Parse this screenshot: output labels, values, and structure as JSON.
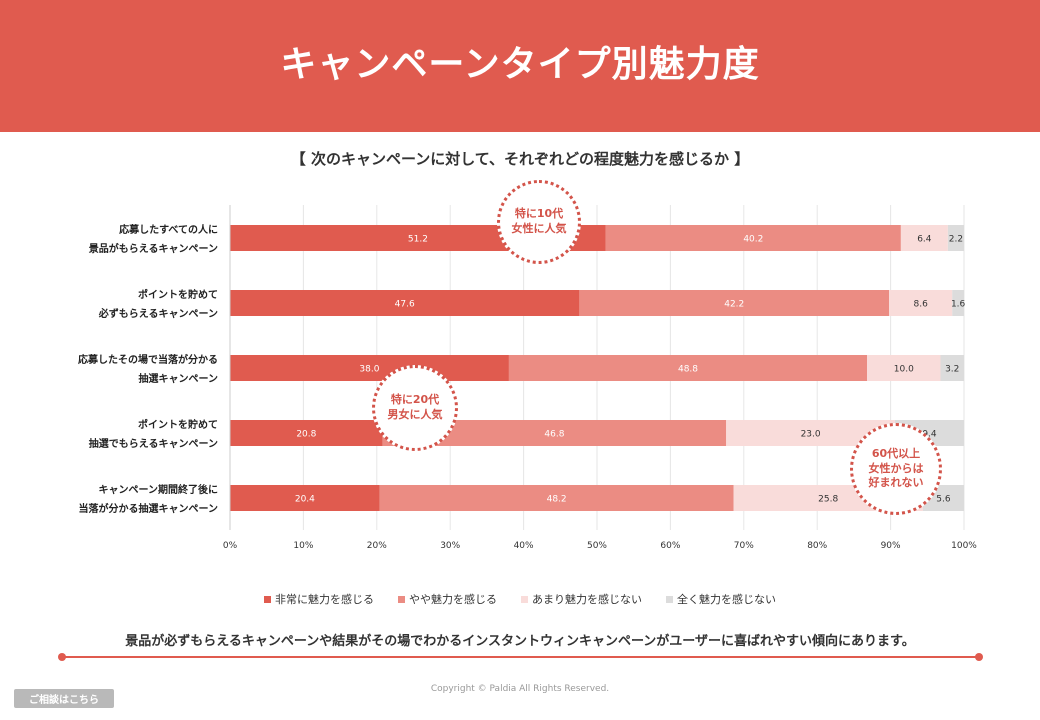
{
  "header": {
    "title": "キャンペーンタイプ別魅力度"
  },
  "subtitle": "【 次のキャンペーンに対して、それぞれどの程度魅力を感じるか 】",
  "chart_data": {
    "type": "bar",
    "orientation": "horizontal",
    "stacked": true,
    "categories": [
      [
        "応募したすべての人に",
        "景品がもらえるキャンペーン"
      ],
      [
        "ポイントを貯めて",
        "必ずもらえるキャンペーン"
      ],
      [
        "応募したその場で当落が分かる",
        "抽選キャンペーン"
      ],
      [
        "ポイントを貯めて",
        "抽選でもらえるキャンペーン"
      ],
      [
        "キャンペーン期間終了後に",
        "当落が分かる抽選キャンペーン"
      ]
    ],
    "series": [
      {
        "name": "非常に魅力を感じる",
        "color": "#e05b4f",
        "label_color": "#ffffff",
        "values": [
          51.2,
          47.6,
          38.0,
          20.8,
          20.4
        ]
      },
      {
        "name": "やや魅力を感じる",
        "color": "#eb8c83",
        "label_color": "#ffffff",
        "values": [
          40.2,
          42.2,
          48.8,
          46.8,
          48.2
        ]
      },
      {
        "name": "あまり魅力を感じない",
        "color": "#f9dcda",
        "label_color": "#333333",
        "values": [
          6.4,
          8.6,
          10.0,
          23.0,
          25.8
        ]
      },
      {
        "name": "全く魅力を感じない",
        "color": "#dcdcdc",
        "label_color": "#333333",
        "values": [
          2.2,
          1.6,
          3.2,
          9.4,
          5.6
        ]
      }
    ],
    "xlim": [
      0,
      100
    ],
    "ticks": [
      "0%",
      "10%",
      "20%",
      "30%",
      "40%",
      "50%",
      "60%",
      "70%",
      "80%",
      "90%",
      "100%"
    ],
    "grid": true,
    "legend_position": "bottom"
  },
  "callouts": {
    "c1": "特に10代\n女性に人気",
    "c2": "特に20代\n男女に人気",
    "c3": "60代以上\n女性からは\n好まれない"
  },
  "conclusion": "景品が必ずもらえるキャンペーンや結果がその場でわかるインスタントウィンキャンペーンがユーザーに喜ばれやすい傾向にあります。",
  "footer": {
    "copyright": "Copyright © Paldia All Rights Reserved.",
    "consult_button": "ご相談はこちら"
  },
  "colors": {
    "accent": "#e05b4f",
    "callout": "#d3544a"
  }
}
